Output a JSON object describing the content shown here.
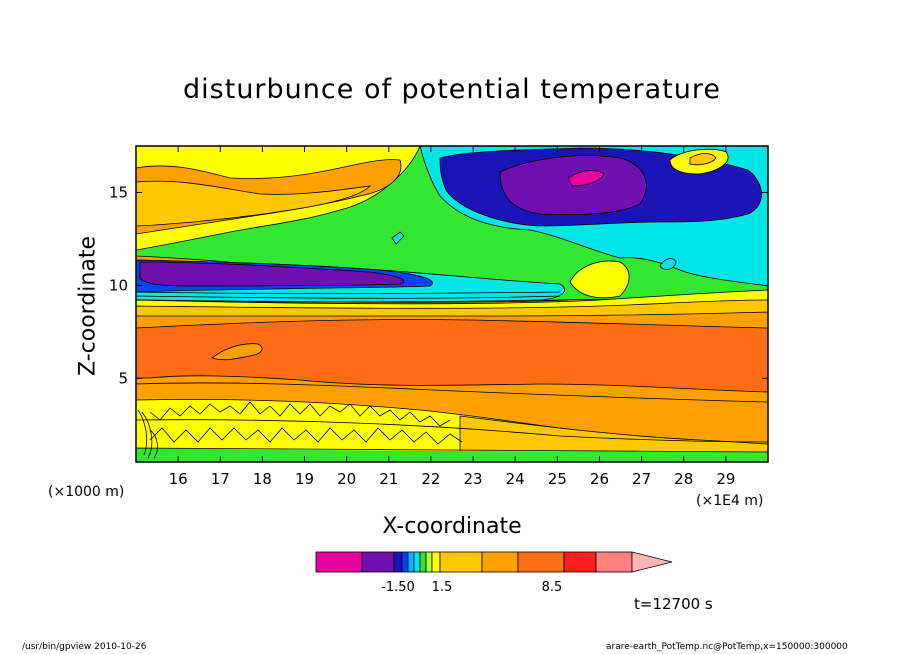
{
  "chart_data": {
    "type": "heatmap",
    "title": "disturbunce of potential temperature",
    "xlabel": "X-coordinate",
    "ylabel": "Z-coordinate",
    "x_unit_left": "(×1000 m)",
    "x_unit_right": "(×1E4 m)",
    "x_ticks": [
      "16",
      "17",
      "18",
      "19",
      "20",
      "21",
      "22",
      "23",
      "24",
      "25",
      "26",
      "27",
      "28",
      "29"
    ],
    "y_ticks": [
      "5",
      "10",
      "15"
    ],
    "xlim": [
      15.0,
      30.0
    ],
    "ylim": [
      0.5,
      17.5
    ],
    "colorbar": {
      "labels": [
        "-1.50",
        "1.5",
        "8.5"
      ],
      "colors": [
        "#e800a0",
        "#7010b0",
        "#1a14b8",
        "#0046f0",
        "#00b4ff",
        "#00e6e6",
        "#32e632",
        "#b4ff32",
        "#ffff00",
        "#ffc800",
        "#ffa000",
        "#ff6e14",
        "#ff1e1e",
        "#ff8080",
        "#ffb4b4"
      ]
    },
    "timestamp": "t=12700 s"
  },
  "footer": {
    "left": "/usr/bin/gpview   2010-10-26",
    "right": "arare-earth_PotTemp.nc@PotTemp,x=150000:300000"
  }
}
